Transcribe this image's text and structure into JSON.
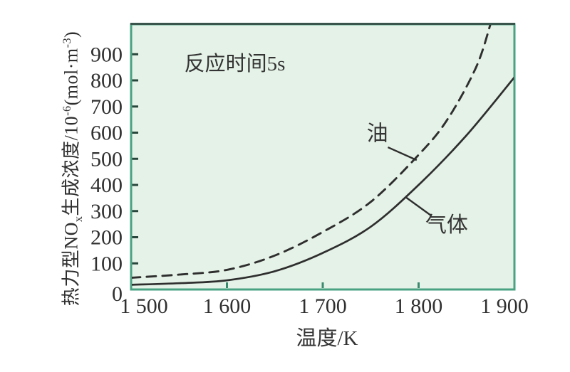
{
  "figure": {
    "background": "#ffffff",
    "plot_bg": "#e5f2e7",
    "border_color": "#49a383",
    "border_top_color": "#3a564c",
    "curve_color": "#2e2e2e",
    "y_tick_color": "#28463c",
    "x_tick_color": "#3a8a6e",
    "text_color": "#303030"
  },
  "chart_data": {
    "type": "line",
    "title": "",
    "annotation": {
      "text": "反应时间5s",
      "x": 1603,
      "y": 880
    },
    "xlabel": "温度/K",
    "ylabel": "热力型NOx生成浓度/10^-6(mol·m^-3)",
    "ylabel_segments": [
      {
        "text": "热力型NO"
      },
      {
        "sub": "x"
      },
      {
        "text": "生成浓度/10"
      },
      {
        "sup": "-6"
      },
      {
        "text": "(mol·m"
      },
      {
        "sup": "-3"
      },
      {
        "text": ")"
      }
    ],
    "xlim": [
      1500,
      1900
    ],
    "ylim": [
      0,
      1015
    ],
    "grid": false,
    "legend": "inline-labels",
    "x_ticks": [
      {
        "value": 1500,
        "label": "1 500",
        "tick": false
      },
      {
        "value": 1600,
        "label": "1 600",
        "tick": true
      },
      {
        "value": 1700,
        "label": "1 700",
        "tick": true
      },
      {
        "value": 1800,
        "label": "1 800",
        "tick": true
      },
      {
        "value": 1900,
        "label": "1 900",
        "tick": false
      }
    ],
    "y_ticks": [
      {
        "value": 0,
        "label": "0",
        "tick": false
      },
      {
        "value": 100,
        "label": "100",
        "tick": true
      },
      {
        "value": 200,
        "label": "200",
        "tick": true
      },
      {
        "value": 300,
        "label": "300",
        "tick": true
      },
      {
        "value": 400,
        "label": "400",
        "tick": true
      },
      {
        "value": 500,
        "label": "500",
        "tick": true
      },
      {
        "value": 600,
        "label": "600",
        "tick": true
      },
      {
        "value": 700,
        "label": "700",
        "tick": true
      },
      {
        "value": 800,
        "label": "800",
        "tick": true
      },
      {
        "value": 900,
        "label": "900",
        "tick": true
      }
    ],
    "series": [
      {
        "name": "油",
        "line_style": "dashed",
        "points": [
          [
            1500,
            45
          ],
          [
            1550,
            57
          ],
          [
            1600,
            75
          ],
          [
            1650,
            130
          ],
          [
            1700,
            220
          ],
          [
            1750,
            335
          ],
          [
            1800,
            515
          ],
          [
            1830,
            650
          ],
          [
            1860,
            850
          ],
          [
            1875,
            1015
          ]
        ],
        "label": {
          "text": "油",
          "x": 1757,
          "y": 600,
          "anchor": "middle"
        },
        "leader": [
          [
            1768,
            544
          ],
          [
            1798,
            495
          ]
        ]
      },
      {
        "name": "气体",
        "line_style": "solid",
        "points": [
          [
            1500,
            18
          ],
          [
            1550,
            24
          ],
          [
            1600,
            35
          ],
          [
            1650,
            70
          ],
          [
            1700,
            140
          ],
          [
            1750,
            240
          ],
          [
            1800,
            400
          ],
          [
            1850,
            590
          ],
          [
            1900,
            812
          ]
        ],
        "label": {
          "text": "气体",
          "x": 1807,
          "y": 250,
          "anchor": "start"
        },
        "leader": [
          [
            1787,
            352
          ],
          [
            1813,
            283
          ]
        ]
      }
    ]
  }
}
